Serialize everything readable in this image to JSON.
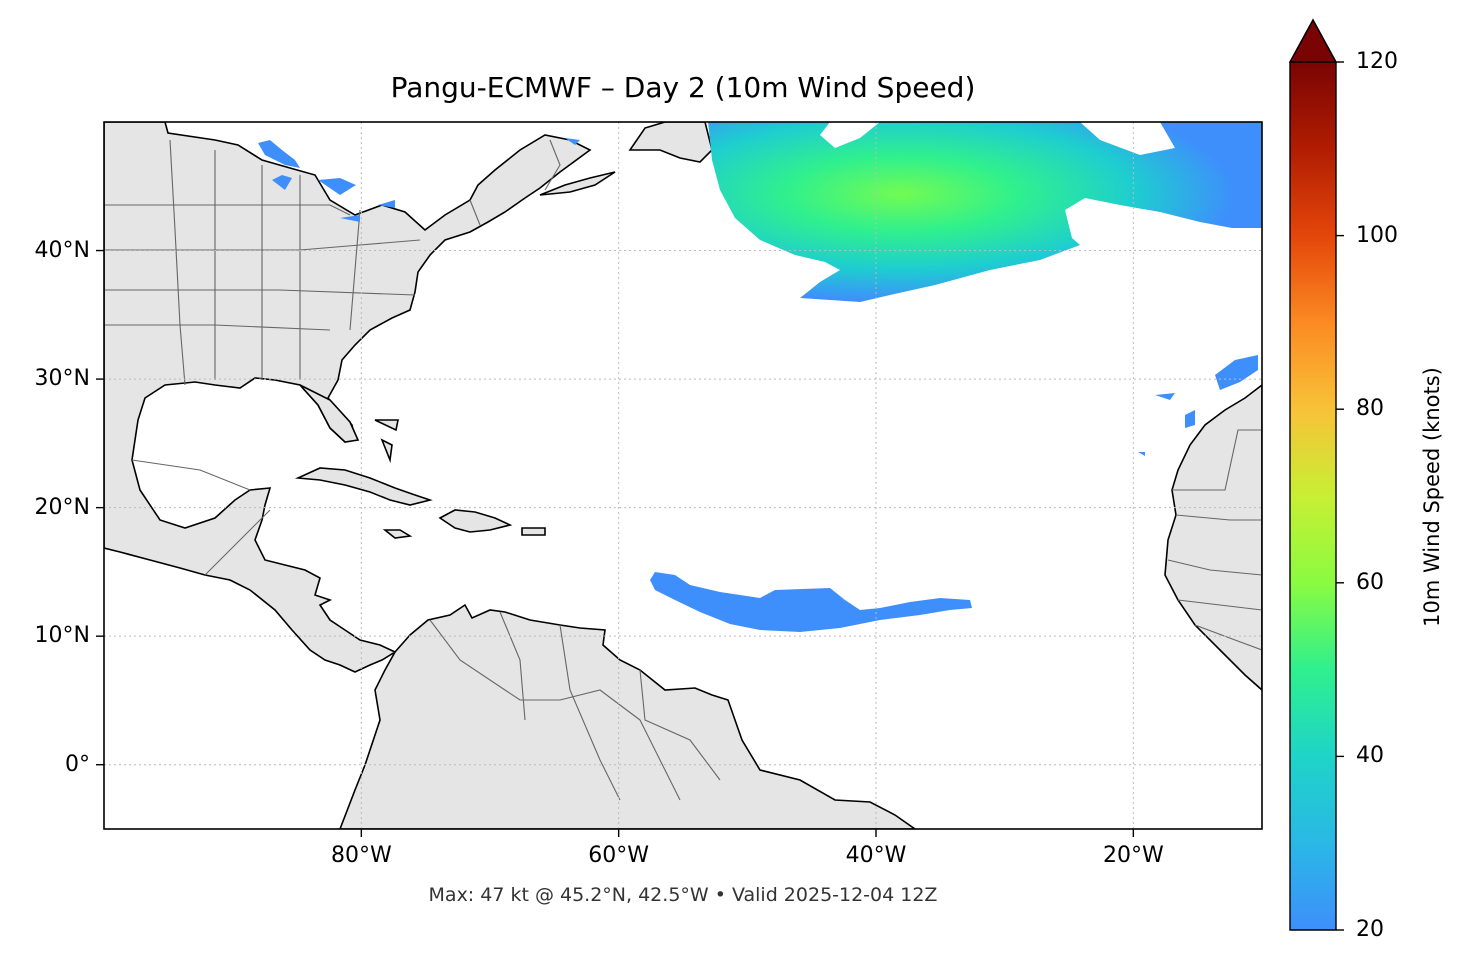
{
  "title": "Pangu-ECMWF – Day 2 (10m Wind Speed)",
  "footer": "Max: 47 kt @ 45.2°N, 42.5°W • Valid 2025-12-04 12Z",
  "map": {
    "extent": {
      "lon_min": -100,
      "lon_max": -10,
      "lat_min": -5,
      "lat_max": 50
    },
    "lat_ticks": [
      {
        "value": 40,
        "label": "40°N"
      },
      {
        "value": 30,
        "label": "30°N"
      },
      {
        "value": 20,
        "label": "20°N"
      },
      {
        "value": 10,
        "label": "10°N"
      },
      {
        "value": 0,
        "label": "0°"
      }
    ],
    "lon_ticks": [
      {
        "value": -80,
        "label": "80°W"
      },
      {
        "value": -60,
        "label": "60°W"
      },
      {
        "value": -40,
        "label": "40°W"
      },
      {
        "value": -20,
        "label": "20°W"
      }
    ],
    "land_color": "#e5e5e5",
    "coast_color": "#000000",
    "border_color": "#666666",
    "gridline_color": "#bbbbbb"
  },
  "colorbar": {
    "label": "10m Wind Speed (knots)",
    "min": 20,
    "max": 120,
    "ticks": [
      20,
      40,
      60,
      80,
      100,
      120
    ],
    "extend": "max",
    "extend_color": "#7a0403",
    "colormap": [
      "#3e8ffc",
      "#2ab8e6",
      "#1ed4c8",
      "#2ff08e",
      "#8afb40",
      "#c8ef34",
      "#f8c238",
      "#fb8a22",
      "#e4460a",
      "#b01d02",
      "#7a0403"
    ]
  },
  "wind_areas": [
    {
      "name": "north-atlantic-storm",
      "peak_kt": 47,
      "peak_lat": 45.2,
      "peak_lon": -42.5
    },
    {
      "name": "tropical-wind-band"
    },
    {
      "name": "canary-winds"
    },
    {
      "name": "great-lakes-winds"
    }
  ]
}
